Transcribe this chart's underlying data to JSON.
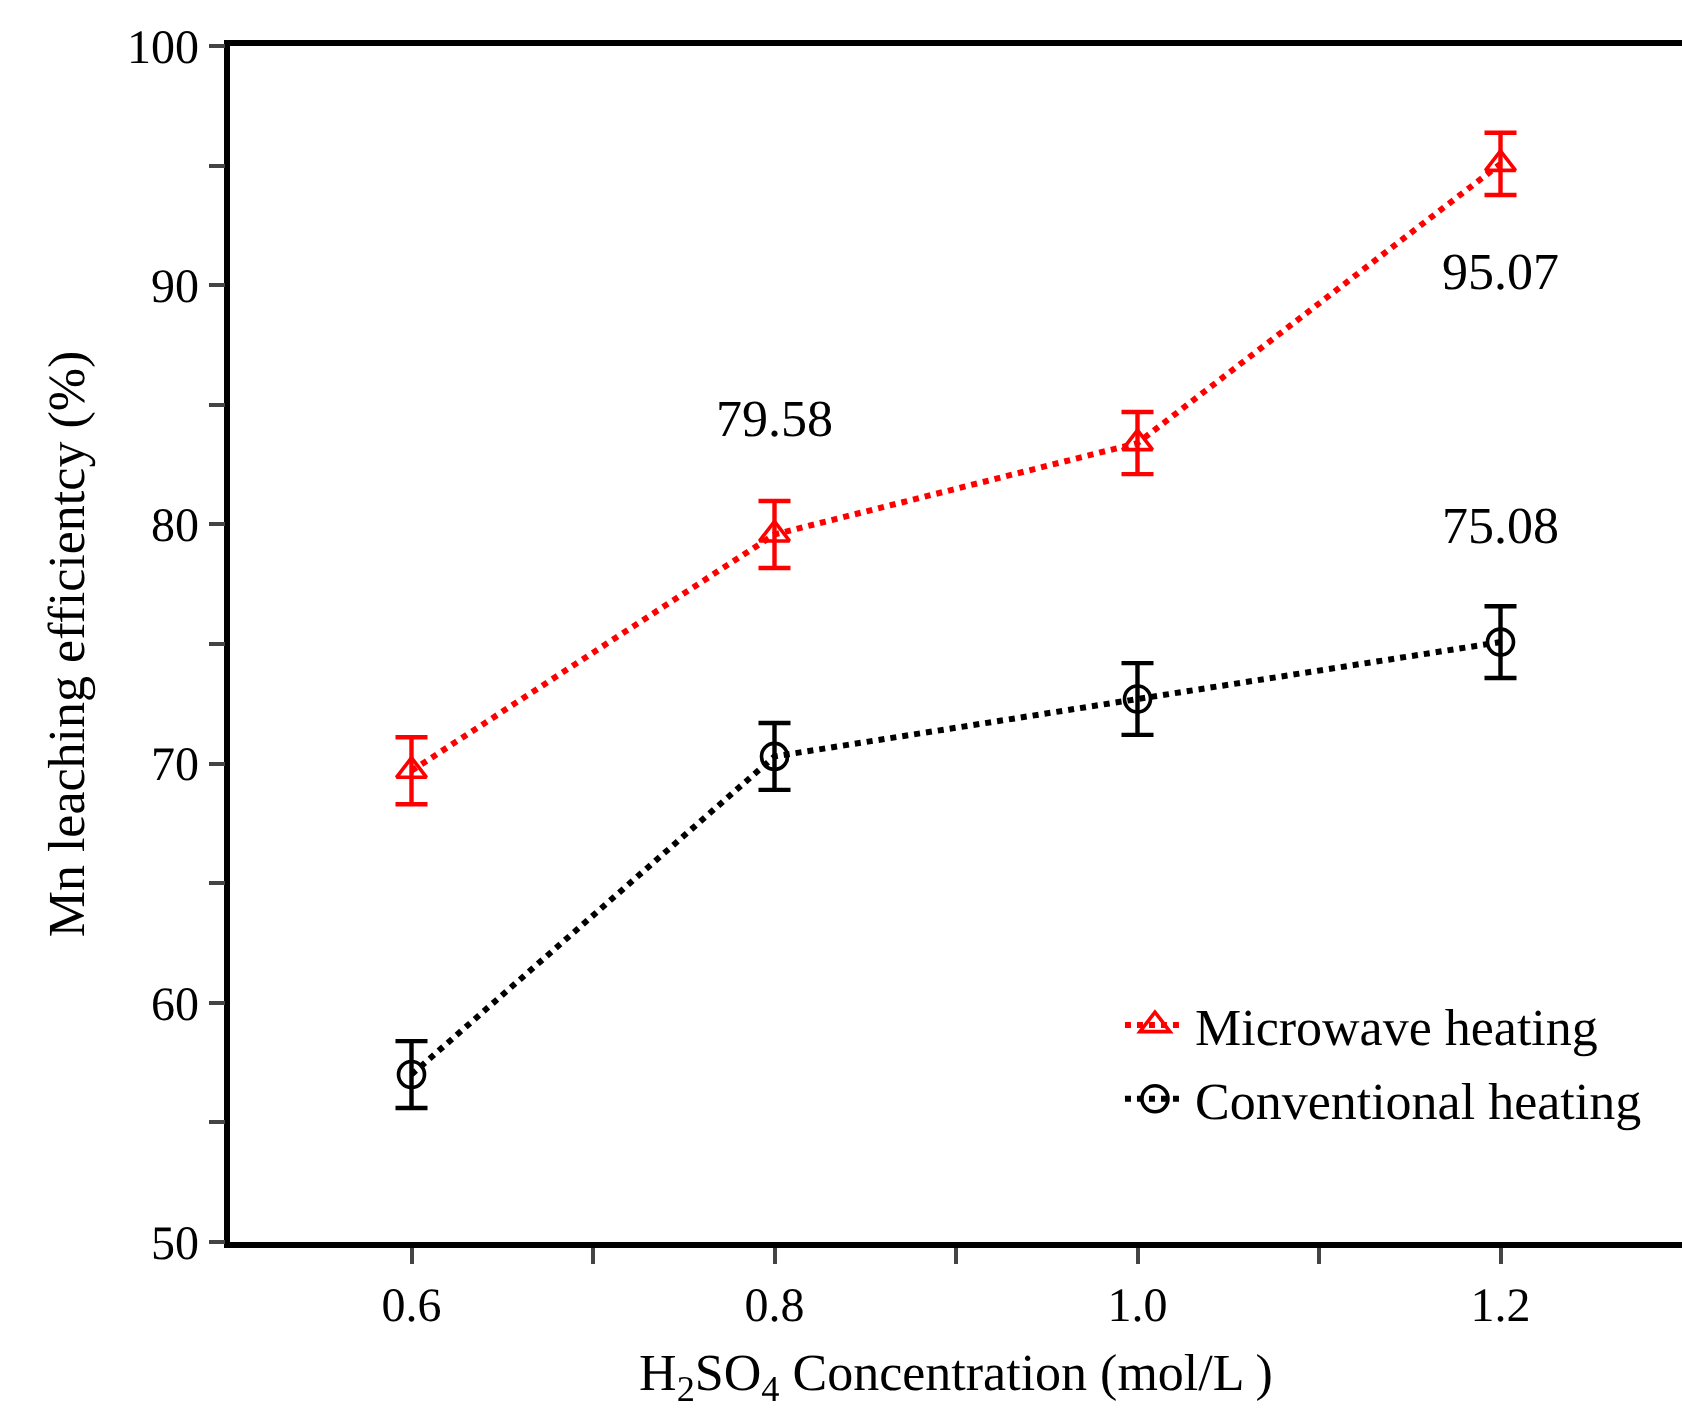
{
  "chart_data": {
    "type": "line",
    "xlabel": "H$_{2}$SO$_{4}$ Concentration (mol/L )",
    "ylabel": "Mn leaching efficientcy (%)",
    "x": [
      0.6,
      0.8,
      1.0,
      1.2
    ],
    "series": [
      {
        "name": "Microwave heating",
        "color": "#ff0000",
        "marker": "triangle",
        "values": [
          69.7,
          79.58,
          83.4,
          95.07
        ],
        "errors": [
          1.4,
          1.4,
          1.3,
          1.3
        ],
        "value_labels": [
          null,
          "79.58",
          null,
          "95.07"
        ]
      },
      {
        "name": "Conventional heating",
        "color": "#000000",
        "marker": "circle",
        "values": [
          57.0,
          70.3,
          72.7,
          75.08
        ],
        "errors": [
          1.4,
          1.4,
          1.5,
          1.5
        ],
        "value_labels": [
          null,
          null,
          null,
          "75.08"
        ]
      }
    ],
    "xlim": [
      0.5,
      1.3
    ],
    "ylim": [
      50,
      100
    ],
    "xticks": [
      {
        "value": 0.6,
        "label": "0.6"
      },
      {
        "value": 0.7,
        "label": null
      },
      {
        "value": 0.8,
        "label": "0.8"
      },
      {
        "value": 0.9,
        "label": null
      },
      {
        "value": 1.0,
        "label": "1.0"
      },
      {
        "value": 1.1,
        "label": null
      },
      {
        "value": 1.2,
        "label": "1.2"
      }
    ],
    "yticks": [
      50,
      {
        "value": 55,
        "label": null
      },
      60,
      {
        "value": 65,
        "label": null
      },
      70,
      {
        "value": 75,
        "label": null
      },
      80,
      {
        "value": 85,
        "label": null
      },
      90,
      {
        "value": 95,
        "label": null
      },
      100
    ],
    "line_style": "dotted",
    "grid": false,
    "legend": "bottom right"
  }
}
